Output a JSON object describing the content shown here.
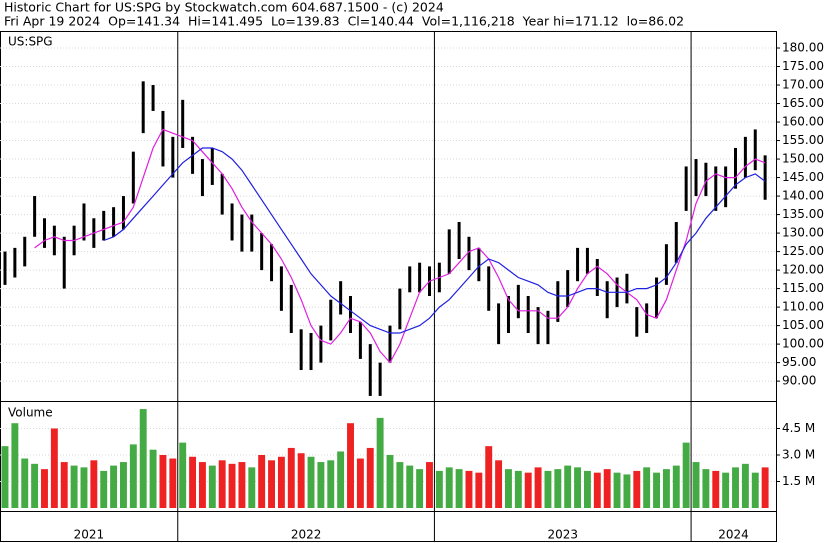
{
  "chart_data": {
    "type": "range-bar",
    "title": "Historic Chart for US:SPG by Stockwatch.com 604.687.1500 - (c) 2024",
    "subtitle": "Fri Apr 19 2024  Op=141.34  Hi=141.495  Lo=139.83  Cl=140.44  Vol=1,116,218  Year hi=171.12  lo=86.02",
    "symbol": "US:SPG",
    "categories": [
      "2021",
      null,
      null,
      null,
      null,
      null,
      null,
      null,
      null,
      null,
      null,
      null,
      null,
      null,
      null,
      null,
      null,
      null,
      "2022",
      null,
      null,
      null,
      null,
      null,
      null,
      null,
      null,
      null,
      null,
      null,
      null,
      null,
      null,
      null,
      null,
      null,
      null,
      null,
      null,
      null,
      null,
      null,
      null,
      null,
      "2023",
      null,
      null,
      null,
      null,
      null,
      null,
      null,
      null,
      null,
      null,
      null,
      null,
      null,
      null,
      null,
      null,
      null,
      null,
      null,
      null,
      null,
      null,
      null,
      null,
      null,
      "2024",
      null,
      null,
      null,
      null,
      null,
      null,
      null
    ],
    "ylim": [
      84.9,
      184.6
    ],
    "yticks": [
      {
        "value": 90,
        "label": "90.00"
      },
      {
        "value": 95,
        "label": "95.00"
      },
      {
        "value": 100,
        "label": "100.00"
      },
      {
        "value": 105,
        "label": "105.00"
      },
      {
        "value": 110,
        "label": "110.00"
      },
      {
        "value": 115,
        "label": "115.00"
      },
      {
        "value": 120,
        "label": "120.00"
      },
      {
        "value": 125,
        "label": "125.00"
      },
      {
        "value": 130,
        "label": "130.00"
      },
      {
        "value": 135,
        "label": "135.00"
      },
      {
        "value": 140,
        "label": "140.00"
      },
      {
        "value": 145,
        "label": "145.00"
      },
      {
        "value": 150,
        "label": "150.00"
      },
      {
        "value": 155,
        "label": "155.00"
      },
      {
        "value": 160,
        "label": "160.00"
      },
      {
        "value": 165,
        "label": "165.00"
      },
      {
        "value": 170,
        "label": "170.00"
      },
      {
        "value": 175,
        "label": "175.00"
      },
      {
        "value": 180,
        "label": "180.00"
      }
    ],
    "grid": true,
    "price": {
      "color": "#000000",
      "high": [
        125,
        126,
        129,
        140,
        134,
        132,
        129,
        132,
        138,
        134,
        136,
        137,
        140,
        152,
        171,
        170,
        163,
        156,
        166,
        156,
        150,
        153,
        146,
        138,
        135,
        135,
        130,
        127,
        121,
        116,
        104,
        103,
        105,
        112,
        117,
        113,
        106,
        100,
        95,
        105,
        115,
        121,
        122,
        121,
        122,
        131,
        133,
        129,
        126,
        121,
        111,
        113,
        116,
        113,
        110,
        109,
        117,
        120,
        126,
        126,
        123,
        117,
        118,
        119,
        110,
        111,
        118,
        127,
        133,
        148,
        150,
        149,
        148,
        148,
        153,
        156,
        158,
        151
      ],
      "low": [
        116,
        118,
        121,
        129,
        126,
        124,
        115,
        124,
        128,
        126,
        128,
        129,
        131,
        138,
        157,
        163,
        148,
        145,
        153,
        146,
        140,
        143,
        135,
        128,
        125,
        125,
        120,
        117,
        109,
        103,
        93,
        93,
        95,
        101,
        108,
        103,
        96,
        86,
        86,
        95,
        104,
        114,
        114,
        113,
        114,
        119,
        123,
        120,
        117,
        109,
        100,
        103,
        107,
        103,
        100,
        100,
        106,
        110,
        117,
        119,
        113,
        107,
        110,
        111,
        102,
        103,
        107,
        116,
        122,
        136,
        140,
        140,
        136,
        137,
        142,
        145,
        147,
        139
      ]
    },
    "series": [
      {
        "color": "#e020e0",
        "values": [
          null,
          null,
          null,
          126,
          128,
          129,
          128,
          128,
          129,
          130,
          131,
          132,
          133,
          137,
          145,
          153,
          158,
          157,
          156,
          155,
          152,
          149,
          146,
          142,
          137,
          133,
          130,
          127,
          123,
          118,
          112,
          105,
          101,
          100,
          103,
          107,
          106,
          103,
          98,
          95,
          100,
          107,
          114,
          117,
          118,
          119,
          122,
          125,
          126,
          123,
          118,
          112,
          109,
          109,
          109,
          107,
          107,
          110,
          115,
          119,
          121,
          119,
          116,
          114,
          112,
          108,
          107,
          112,
          120,
          128,
          138,
          144,
          146,
          145,
          145,
          148,
          150,
          149
        ]
      },
      {
        "color": "#2020e0",
        "values": [
          null,
          null,
          null,
          null,
          null,
          null,
          null,
          null,
          null,
          null,
          128,
          129,
          131,
          134,
          137,
          140,
          143,
          146,
          149,
          151,
          153,
          153,
          152,
          150,
          147,
          143,
          139,
          135,
          131,
          127,
          123,
          119,
          116,
          113,
          111,
          109,
          107,
          105,
          104,
          103,
          103,
          104,
          105,
          107,
          110,
          112,
          115,
          118,
          121,
          123,
          122,
          120,
          118,
          117,
          116,
          114,
          113,
          113,
          114,
          115,
          115,
          114,
          114,
          114,
          115,
          115,
          116,
          118,
          122,
          127,
          130,
          134,
          137,
          140,
          143,
          145,
          146,
          144
        ]
      }
    ],
    "volume": {
      "label": "Volume",
      "color": "#44aa44",
      "down_color": "#ee2222",
      "ylim": [
        0,
        6000000
      ],
      "yticks": [
        {
          "value": 1500000,
          "label": "1.5 M"
        },
        {
          "value": 3000000,
          "label": "3.0 M"
        },
        {
          "value": 4500000,
          "label": "4.5 M"
        }
      ],
      "values": [
        3500000,
        4800000,
        2800000,
        2500000,
        2200000,
        4500000,
        2600000,
        2400000,
        2300000,
        2700000,
        2100000,
        2400000,
        2600000,
        3600000,
        5600000,
        3300000,
        3000000,
        2800000,
        3700000,
        2900000,
        2600000,
        2400000,
        2700000,
        2500000,
        2600000,
        2300000,
        3000000,
        2700000,
        2900000,
        3400000,
        3100000,
        2900000,
        2600000,
        2700000,
        3200000,
        4800000,
        2800000,
        3400000,
        5100000,
        3000000,
        2600000,
        2400000,
        2200000,
        2600000,
        2100000,
        2300000,
        2200000,
        2100000,
        2000000,
        3500000,
        2700000,
        2200000,
        2100000,
        2000000,
        2300000,
        2100000,
        2200000,
        2400000,
        2300000,
        2100000,
        2000000,
        2200000,
        2000000,
        1900000,
        2100000,
        2300000,
        2000000,
        2200000,
        2400000,
        3700000,
        2600000,
        2200000,
        2100000,
        2000000,
        2300000,
        2500000,
        2000000,
        2300000
      ]
    }
  }
}
